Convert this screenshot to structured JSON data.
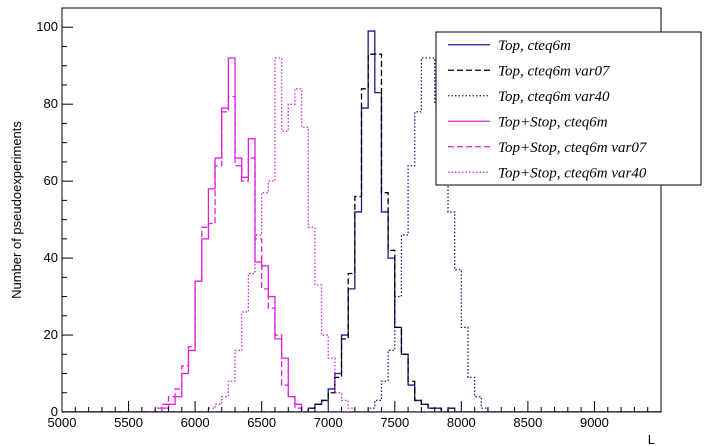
{
  "chart_data": {
    "type": "line",
    "xlabel": "L",
    "ylabel": "Number of pseudoexperiments",
    "xlim": [
      5000,
      9500
    ],
    "ylim": [
      0,
      105
    ],
    "x_ticks": [
      5000,
      5500,
      6000,
      6500,
      7000,
      7500,
      8000,
      8500,
      9000
    ],
    "y_ticks": [
      0,
      20,
      40,
      60,
      80,
      100
    ],
    "grid": false,
    "legend_position": "top-right",
    "series": [
      {
        "name": "Top, cteq6m",
        "color": "#1a1a8c",
        "dash": "solid",
        "x": [
          6850,
          6900,
          6950,
          7000,
          7050,
          7100,
          7150,
          7200,
          7250,
          7300,
          7350,
          7400,
          7450,
          7500,
          7550,
          7600,
          7650,
          7700,
          7750,
          7800,
          7850,
          7900,
          7950
        ],
        "y": [
          1,
          2,
          3,
          6,
          10,
          20,
          32,
          52,
          79,
          99,
          83,
          52,
          40,
          22,
          15,
          7,
          3,
          2,
          1,
          1,
          0,
          1,
          0
        ]
      },
      {
        "name": "Top, cteq6m var07",
        "color": "#000000",
        "dash": "dashed",
        "x": [
          6850,
          6900,
          6950,
          7000,
          7050,
          7100,
          7150,
          7200,
          7250,
          7300,
          7350,
          7400,
          7450,
          7500,
          7550,
          7600,
          7650,
          7700,
          7750,
          7800,
          7850,
          7900,
          7950
        ],
        "y": [
          1,
          2,
          3,
          5,
          9,
          19,
          36,
          56,
          84,
          93,
          93,
          57,
          42,
          22,
          15,
          8,
          3,
          2,
          1,
          1,
          0,
          1,
          0
        ]
      },
      {
        "name": "Top, cteq6m var40",
        "color": "#1a1a8c",
        "dash": "dotted",
        "x": [
          7300,
          7350,
          7400,
          7450,
          7500,
          7550,
          7600,
          7650,
          7700,
          7750,
          7800,
          7850,
          7900,
          7950,
          8000,
          8050,
          8100,
          8150,
          8200,
          8250
        ],
        "y": [
          1,
          3,
          8,
          16,
          30,
          46,
          64,
          78,
          92,
          92,
          80,
          61,
          52,
          37,
          22,
          9,
          4,
          1,
          0,
          0
        ]
      },
      {
        "name": "Top+Stop, cteq6m",
        "color": "#e020e0",
        "dash": "solid",
        "x": [
          5700,
          5750,
          5800,
          5850,
          5900,
          5950,
          6000,
          6050,
          6100,
          6150,
          6200,
          6250,
          6300,
          6350,
          6400,
          6450,
          6500,
          6550,
          6600,
          6650,
          6700,
          6750,
          6800
        ],
        "y": [
          0,
          1,
          2,
          4,
          10,
          16,
          34,
          45,
          58,
          66,
          79,
          92,
          66,
          61,
          71,
          39,
          38,
          30,
          19,
          14,
          4,
          2,
          0
        ]
      },
      {
        "name": "Top+Stop, cteq6m var07",
        "color": "#e020e0",
        "dash": "dashed",
        "x": [
          5700,
          5750,
          5800,
          5850,
          5900,
          5950,
          6000,
          6050,
          6100,
          6150,
          6200,
          6250,
          6300,
          6350,
          6400,
          6450,
          6500,
          6550,
          6600,
          6650,
          6700,
          6750,
          6800
        ],
        "y": [
          1,
          2,
          4,
          6,
          12,
          17,
          34,
          48,
          49,
          64,
          78,
          82,
          64,
          60,
          66,
          45,
          32,
          27,
          20,
          7,
          4,
          1,
          0
        ]
      },
      {
        "name": "Top+Stop, cteq6m var40",
        "color": "#e020e0",
        "dash": "dotted",
        "x": [
          6100,
          6150,
          6200,
          6250,
          6300,
          6350,
          6400,
          6450,
          6500,
          6550,
          6600,
          6650,
          6700,
          6750,
          6800,
          6850,
          6900,
          6950,
          7000,
          7050,
          7100,
          7150,
          7200
        ],
        "y": [
          1,
          2,
          4,
          8,
          16,
          26,
          36,
          46,
          57,
          60,
          92,
          73,
          80,
          84,
          74,
          48,
          33,
          20,
          14,
          5,
          3,
          1,
          0
        ]
      }
    ]
  }
}
